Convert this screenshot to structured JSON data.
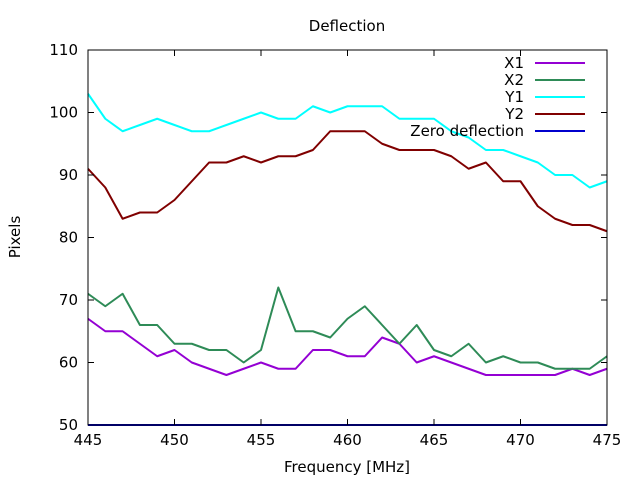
{
  "chart_data": {
    "type": "line",
    "title": "Deflection",
    "xlabel": "Frequency [MHz]",
    "ylabel": "Pixels",
    "xlim": [
      445,
      475
    ],
    "ylim": [
      50,
      110
    ],
    "xticks": [
      445,
      450,
      455,
      460,
      465,
      470,
      475
    ],
    "yticks": [
      50,
      60,
      70,
      80,
      90,
      100,
      110
    ],
    "grid": false,
    "legend_position": "top-right",
    "x": [
      445,
      446,
      447,
      448,
      449,
      450,
      451,
      452,
      453,
      454,
      455,
      456,
      457,
      458,
      459,
      460,
      461,
      462,
      463,
      464,
      465,
      466,
      467,
      468,
      469,
      470,
      471,
      472,
      473,
      474,
      475
    ],
    "series": [
      {
        "name": "X1",
        "color": "#9400d3",
        "values": [
          67,
          65,
          65,
          63,
          61,
          62,
          60,
          59,
          58,
          59,
          60,
          59,
          59,
          62,
          62,
          61,
          61,
          64,
          63,
          60,
          61,
          60,
          59,
          58,
          58,
          58,
          58,
          58,
          59,
          58,
          59
        ]
      },
      {
        "name": "X2",
        "color": "#2e8b57",
        "values": [
          71,
          69,
          71,
          66,
          66,
          63,
          63,
          62,
          62,
          60,
          62,
          72,
          65,
          65,
          64,
          67,
          69,
          66,
          63,
          66,
          62,
          61,
          63,
          60,
          61,
          60,
          60,
          59,
          59,
          59,
          61
        ]
      },
      {
        "name": "Y1",
        "color": "#00ffff",
        "values": [
          103,
          99,
          97,
          98,
          99,
          98,
          97,
          97,
          98,
          99,
          100,
          99,
          99,
          101,
          100,
          101,
          101,
          101,
          99,
          99,
          99,
          97,
          96,
          94,
          94,
          93,
          92,
          90,
          90,
          88,
          89
        ]
      },
      {
        "name": "Y2",
        "color": "#800000",
        "values": [
          91,
          88,
          83,
          84,
          84,
          86,
          89,
          92,
          92,
          93,
          92,
          93,
          93,
          94,
          97,
          97,
          97,
          95,
          94,
          94,
          94,
          93,
          91,
          92,
          89,
          89,
          85,
          83,
          82,
          82,
          81
        ]
      },
      {
        "name": "Zero deflection",
        "color": "#0000cd",
        "values": [
          50,
          50,
          50,
          50,
          50,
          50,
          50,
          50,
          50,
          50,
          50,
          50,
          50,
          50,
          50,
          50,
          50,
          50,
          50,
          50,
          50,
          50,
          50,
          50,
          50,
          50,
          50,
          50,
          50,
          50,
          50
        ]
      }
    ]
  }
}
